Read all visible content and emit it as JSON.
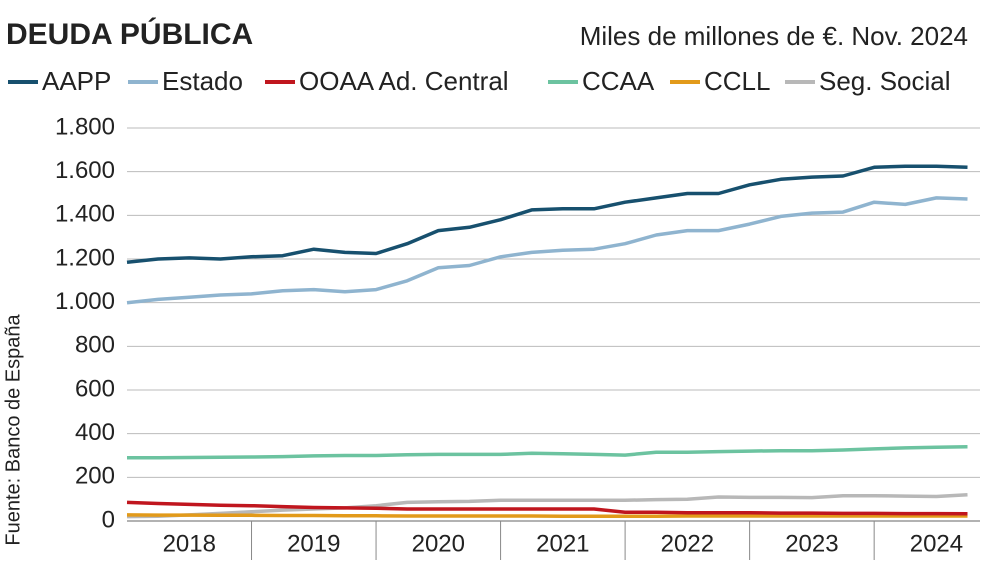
{
  "chart_data": {
    "type": "line",
    "title": "DEUDA PÚBLICA",
    "subtitle": "Miles de millones de €. Nov. 2024",
    "source": "Fuente: Banco de España",
    "x": [
      2018,
      2018.25,
      2018.5,
      2018.75,
      2019,
      2019.25,
      2019.5,
      2019.75,
      2020,
      2020.25,
      2020.5,
      2020.75,
      2021,
      2021.25,
      2021.5,
      2021.75,
      2022,
      2022.25,
      2022.5,
      2022.75,
      2023,
      2023.25,
      2023.5,
      2023.75,
      2024,
      2024.25,
      2024.5,
      2024.75
    ],
    "xlim": [
      2018,
      2024.85
    ],
    "xticks": [
      {
        "value": 2018.5,
        "label": "2018"
      },
      {
        "value": 2019.5,
        "label": "2019"
      },
      {
        "value": 2020.5,
        "label": "2020"
      },
      {
        "value": 2021.5,
        "label": "2021"
      },
      {
        "value": 2022.5,
        "label": "2022"
      },
      {
        "value": 2023.5,
        "label": "2023"
      },
      {
        "value": 2024.5,
        "label": "2024"
      }
    ],
    "ylim": [
      0,
      1800
    ],
    "yticks": [
      0,
      200,
      400,
      600,
      800,
      {
        "value": 1000,
        "label": "1.000"
      },
      {
        "value": 1200,
        "label": "1.200"
      },
      {
        "value": 1400,
        "label": "1.400"
      },
      {
        "value": 1600,
        "label": "1.600"
      },
      {
        "value": 1800,
        "label": "1.800"
      }
    ],
    "grid": true,
    "legend": "top",
    "series": [
      {
        "name": "AAPP",
        "color": "#17506e",
        "values": [
          1185,
          1200,
          1205,
          1200,
          1210,
          1215,
          1245,
          1230,
          1225,
          1270,
          1330,
          1345,
          1380,
          1425,
          1430,
          1430,
          1460,
          1480,
          1500,
          1500,
          1540,
          1565,
          1575,
          1580,
          1620,
          1625,
          1625,
          1620
        ]
      },
      {
        "name": "Estado",
        "color": "#8fb4cf",
        "values": [
          1000,
          1015,
          1025,
          1035,
          1040,
          1055,
          1060,
          1050,
          1060,
          1100,
          1160,
          1170,
          1210,
          1230,
          1240,
          1245,
          1270,
          1310,
          1330,
          1330,
          1360,
          1395,
          1410,
          1415,
          1460,
          1450,
          1480,
          1475
        ]
      },
      {
        "name": "OOAA Ad. Central",
        "color": "#c0161e",
        "values": [
          85,
          80,
          76,
          72,
          70,
          66,
          62,
          60,
          58,
          55,
          55,
          55,
          55,
          55,
          55,
          55,
          40,
          40,
          38,
          38,
          38,
          36,
          36,
          35,
          35,
          34,
          34,
          33
        ]
      },
      {
        "name": "CCAA",
        "color": "#6cc3a0",
        "values": [
          290,
          290,
          291,
          292,
          293,
          295,
          298,
          300,
          300,
          303,
          305,
          305,
          305,
          310,
          308,
          305,
          302,
          315,
          315,
          318,
          320,
          322,
          322,
          325,
          330,
          335,
          338,
          340
        ]
      },
      {
        "name": "CCLL",
        "color": "#e29a1a",
        "values": [
          28,
          27,
          27,
          26,
          26,
          25,
          25,
          24,
          24,
          23,
          23,
          23,
          23,
          23,
          22,
          22,
          22,
          22,
          23,
          23,
          23,
          23,
          23,
          23,
          23,
          23,
          23,
          23
        ]
      },
      {
        "name": "Seg. Social",
        "color": "#b8b8b8",
        "values": [
          20,
          22,
          28,
          35,
          42,
          50,
          55,
          60,
          70,
          85,
          88,
          90,
          95,
          95,
          95,
          95,
          95,
          98,
          100,
          110,
          108,
          108,
          107,
          116,
          116,
          114,
          112,
          120
        ]
      }
    ]
  }
}
